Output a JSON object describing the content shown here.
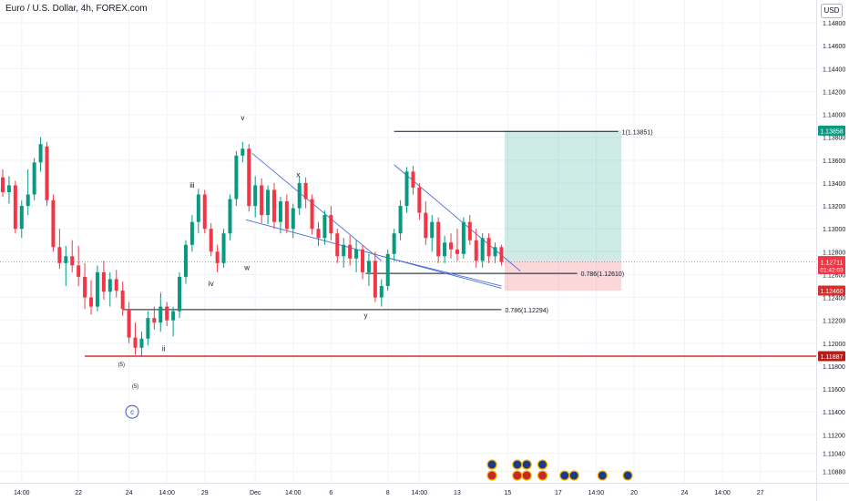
{
  "header": {
    "title": "Euro / U.S. Dollar, 4h, FOREX.com",
    "currency": "USD"
  },
  "chart_data": {
    "type": "candlestick",
    "symbol": "EURUSD",
    "timeframe": "4h",
    "ylim": [
      1.1078,
      1.15
    ],
    "y_ticks": [
      1.148,
      1.146,
      1.144,
      1.142,
      1.14,
      1.138,
      1.136,
      1.134,
      1.132,
      1.13,
      1.128,
      1.126,
      1.124,
      1.122,
      1.12,
      1.118,
      1.116,
      1.114,
      1.112,
      1.1104,
      1.1088
    ],
    "y_tick_labels": [
      "1.14800",
      "1.14600",
      "1.14400",
      "1.14200",
      "1.14000",
      "1.13800",
      "1.13600",
      "1.13400",
      "1.13200",
      "1.13000",
      "1.12800",
      "1.12600",
      "1.12400",
      "1.12200",
      "1.12000",
      "1.11800",
      "1.11600",
      "1.11400",
      "1.11200",
      "1.11040",
      "1.10880"
    ],
    "x_ticks": [
      {
        "label": "14:00",
        "bar": 3
      },
      {
        "label": "22",
        "bar": 12
      },
      {
        "label": "24",
        "bar": 20
      },
      {
        "label": "14:00",
        "bar": 26
      },
      {
        "label": "29",
        "bar": 32
      },
      {
        "label": "Dec",
        "bar": 40
      },
      {
        "label": "14:00",
        "bar": 46
      },
      {
        "label": "6",
        "bar": 52
      },
      {
        "label": "8",
        "bar": 61
      },
      {
        "label": "14:00",
        "bar": 66
      },
      {
        "label": "13",
        "bar": 72
      },
      {
        "label": "15",
        "bar": 80
      },
      {
        "label": "17",
        "bar": 88
      },
      {
        "label": "14:00",
        "bar": 94
      },
      {
        "label": "20",
        "bar": 100
      },
      {
        "label": "24",
        "bar": 108
      },
      {
        "label": "14:00",
        "bar": 114
      },
      {
        "label": "27",
        "bar": 120
      }
    ],
    "candles": [
      [
        1.1345,
        1.1352,
        1.1328,
        1.1332
      ],
      [
        1.1332,
        1.1346,
        1.1322,
        1.1338
      ],
      [
        1.1338,
        1.1342,
        1.1296,
        1.13
      ],
      [
        1.13,
        1.1325,
        1.1292,
        1.132
      ],
      [
        1.132,
        1.1352,
        1.1312,
        1.133
      ],
      [
        1.133,
        1.1362,
        1.1325,
        1.1358
      ],
      [
        1.1358,
        1.138,
        1.135,
        1.1374
      ],
      [
        1.1372,
        1.1376,
        1.132,
        1.1325
      ],
      [
        1.1325,
        1.133,
        1.128,
        1.1284
      ],
      [
        1.1284,
        1.13,
        1.1265,
        1.127
      ],
      [
        1.127,
        1.1285,
        1.125,
        1.1276
      ],
      [
        1.1276,
        1.129,
        1.1262,
        1.1268
      ],
      [
        1.1268,
        1.1285,
        1.125,
        1.1258
      ],
      [
        1.1258,
        1.127,
        1.123,
        1.124
      ],
      [
        1.124,
        1.1255,
        1.1225,
        1.1232
      ],
      [
        1.1232,
        1.1268,
        1.1228,
        1.1262
      ],
      [
        1.1262,
        1.1272,
        1.1238,
        1.1245
      ],
      [
        1.1245,
        1.1262,
        1.1232,
        1.1256
      ],
      [
        1.1256,
        1.1264,
        1.124,
        1.1246
      ],
      [
        1.1246,
        1.1254,
        1.1224,
        1.123
      ],
      [
        1.123,
        1.1236,
        1.12,
        1.1205
      ],
      [
        1.1205,
        1.1218,
        1.119,
        1.1196
      ],
      [
        1.1196,
        1.121,
        1.1188,
        1.1204
      ],
      [
        1.1204,
        1.1228,
        1.1198,
        1.1222
      ],
      [
        1.1222,
        1.1232,
        1.1212,
        1.1218
      ],
      [
        1.1218,
        1.124,
        1.121,
        1.1232
      ],
      [
        1.1232,
        1.1236,
        1.1215,
        1.122
      ],
      [
        1.122,
        1.1232,
        1.1206,
        1.1228
      ],
      [
        1.1228,
        1.1262,
        1.1222,
        1.1258
      ],
      [
        1.1258,
        1.129,
        1.1252,
        1.1286
      ],
      [
        1.1286,
        1.1312,
        1.128,
        1.1306
      ],
      [
        1.1306,
        1.1335,
        1.1296,
        1.133
      ],
      [
        1.133,
        1.1334,
        1.1296,
        1.13
      ],
      [
        1.13,
        1.1305,
        1.1276,
        1.128
      ],
      [
        1.128,
        1.1286,
        1.1262,
        1.127
      ],
      [
        1.127,
        1.13,
        1.1266,
        1.1296
      ],
      [
        1.1296,
        1.133,
        1.129,
        1.1326
      ],
      [
        1.1326,
        1.1368,
        1.132,
        1.1364
      ],
      [
        1.1364,
        1.1376,
        1.1358,
        1.137
      ],
      [
        1.137,
        1.1374,
        1.1315,
        1.132
      ],
      [
        1.132,
        1.1346,
        1.131,
        1.1338
      ],
      [
        1.1338,
        1.1344,
        1.1305,
        1.1312
      ],
      [
        1.1312,
        1.1338,
        1.1304,
        1.1334
      ],
      [
        1.1334,
        1.134,
        1.13,
        1.1306
      ],
      [
        1.1306,
        1.1328,
        1.1296,
        1.1324
      ],
      [
        1.1324,
        1.133,
        1.1296,
        1.13
      ],
      [
        1.13,
        1.1322,
        1.1292,
        1.1318
      ],
      [
        1.1318,
        1.1346,
        1.1312,
        1.134
      ],
      [
        1.134,
        1.1345,
        1.1318,
        1.1326
      ],
      [
        1.1326,
        1.133,
        1.1295,
        1.13
      ],
      [
        1.13,
        1.1306,
        1.1285,
        1.1292
      ],
      [
        1.1292,
        1.1316,
        1.1286,
        1.1312
      ],
      [
        1.1312,
        1.132,
        1.129,
        1.1296
      ],
      [
        1.1296,
        1.13,
        1.127,
        1.1276
      ],
      [
        1.1276,
        1.1292,
        1.1266,
        1.1286
      ],
      [
        1.1286,
        1.1294,
        1.1268,
        1.1274
      ],
      [
        1.1274,
        1.129,
        1.1262,
        1.1282
      ],
      [
        1.1282,
        1.1286,
        1.1256,
        1.1262
      ],
      [
        1.1262,
        1.1278,
        1.125,
        1.1272
      ],
      [
        1.1272,
        1.128,
        1.1236,
        1.124
      ],
      [
        1.124,
        1.1256,
        1.1232,
        1.125
      ],
      [
        1.125,
        1.1282,
        1.1246,
        1.1278
      ],
      [
        1.1278,
        1.13,
        1.1272,
        1.1296
      ],
      [
        1.1296,
        1.1325,
        1.129,
        1.132
      ],
      [
        1.132,
        1.1354,
        1.1314,
        1.135
      ],
      [
        1.135,
        1.1355,
        1.133,
        1.1336
      ],
      [
        1.1336,
        1.134,
        1.1308,
        1.1314
      ],
      [
        1.1314,
        1.1324,
        1.1286,
        1.1292
      ],
      [
        1.1292,
        1.1312,
        1.128,
        1.1306
      ],
      [
        1.1306,
        1.131,
        1.127,
        1.1276
      ],
      [
        1.1276,
        1.1294,
        1.127,
        1.1288
      ],
      [
        1.1288,
        1.1296,
        1.1274,
        1.1282
      ],
      [
        1.1282,
        1.13,
        1.1272,
        1.1278
      ],
      [
        1.1278,
        1.131,
        1.1274,
        1.1306
      ],
      [
        1.1306,
        1.1312,
        1.1286,
        1.129
      ],
      [
        1.129,
        1.13,
        1.1266,
        1.1272
      ],
      [
        1.1272,
        1.1296,
        1.1266,
        1.1292
      ],
      [
        1.1292,
        1.1296,
        1.127,
        1.1276
      ],
      [
        1.1276,
        1.1288,
        1.127,
        1.1284
      ],
      [
        1.1284,
        1.1286,
        1.1268,
        1.1271
      ]
    ],
    "horizontal_lines": [
      {
        "price": 1.11887,
        "color": "#d32f2f",
        "style": "solid"
      },
      {
        "price": 1.12294,
        "color": "#131722",
        "style": "solid",
        "label": "0.786(1.12294)"
      },
      {
        "price": 1.1261,
        "color": "#131722",
        "style": "solid",
        "label": "0.786(1.12610)"
      },
      {
        "price": 1.13851,
        "color": "#131722",
        "style": "solid",
        "label": "1(1.13851)"
      }
    ],
    "channels": [
      {
        "x0": 39.5,
        "y0": 1.1366,
        "x1": 60,
        "y1": 1.1272
      },
      {
        "x0": 38.5,
        "y0": 1.1308,
        "x1": 79,
        "y1": 1.1248
      },
      {
        "x0": 62,
        "y0": 1.1356,
        "x1": 82,
        "y1": 1.1263
      },
      {
        "x0": 60,
        "y0": 1.1276,
        "x1": 79,
        "y1": 1.125
      }
    ],
    "position": {
      "x0": 79.5,
      "x1": 98,
      "entry": 1.12719,
      "target": 1.13858,
      "stop": 1.1246
    },
    "wave_labels": [
      {
        "text": "v",
        "bar": 38,
        "price": 1.1395
      },
      {
        "text": "iii",
        "bar": 30,
        "price": 1.1336
      },
      {
        "text": "iv",
        "bar": 33,
        "price": 1.125
      },
      {
        "text": "w",
        "bar": 38.7,
        "price": 1.1264
      },
      {
        "text": "x",
        "bar": 46.8,
        "price": 1.1345
      },
      {
        "text": "y",
        "bar": 57.5,
        "price": 1.1222
      },
      {
        "text": "i",
        "bar": 25,
        "price": 1.124
      },
      {
        "text": "ii",
        "bar": 25.5,
        "price": 1.1193
      },
      {
        "text": "(5)",
        "bar": 18.8,
        "price": 1.118
      },
      {
        "text": "(5)",
        "bar": 21,
        "price": 1.1161
      }
    ],
    "circled_label": {
      "text": "c",
      "bar": 20.5,
      "price": 1.114
    },
    "price_badges": [
      {
        "price": 1.13858,
        "text": "1.13858",
        "bg": "#089981",
        "fg": "#ffffff"
      },
      {
        "price": 1.12719,
        "text": "1.12719",
        "bg": "#787b86",
        "fg": "#ffffff"
      },
      {
        "price": 1.12711,
        "text": "1.12711",
        "bg": "#f23645",
        "fg": "#ffffff"
      },
      {
        "price": 1.1246,
        "text": "1.12460",
        "bg": "#d32f2f",
        "fg": "#ffffff"
      },
      {
        "price": 1.11887,
        "text": "1.11887",
        "bg": "#b71c1c",
        "fg": "#ffffff"
      }
    ],
    "countdown": "01:42:03",
    "event_icons": [
      {
        "bar": 77.5,
        "stack": 2
      },
      {
        "bar": 81.5,
        "stack": 2
      },
      {
        "bar": 83,
        "stack": 2
      },
      {
        "bar": 85.5,
        "stack": 2
      },
      {
        "bar": 89,
        "stack": 1
      },
      {
        "bar": 90.5,
        "stack": 1
      },
      {
        "bar": 95,
        "stack": 1
      },
      {
        "bar": 99,
        "stack": 1
      }
    ],
    "colors": {
      "up": "#089981",
      "down": "#f23645",
      "channel": "#4a6ee0",
      "grid": "#f0f3fa"
    }
  }
}
